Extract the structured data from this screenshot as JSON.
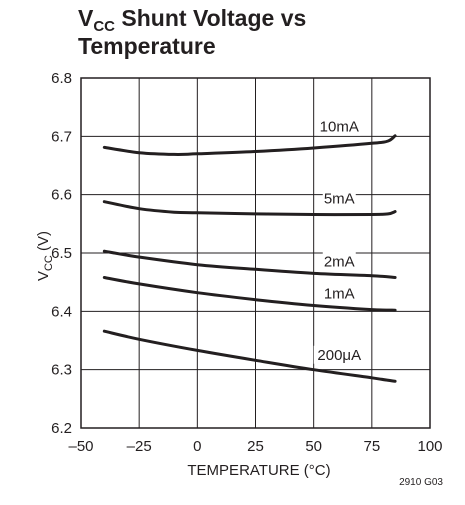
{
  "chart_data": {
    "type": "line",
    "title": {
      "symbol": "V",
      "symbol_sub": "CC",
      "line1_rest": " Shunt Voltage vs",
      "line2": "Temperature"
    },
    "xlabel": "TEMPERATURE (°C)",
    "ylabel": {
      "main": "V",
      "sub": "CC",
      "rest": " (V)"
    },
    "xlim": [
      -50,
      100
    ],
    "ylim": [
      6.2,
      6.8
    ],
    "x_ticks": [
      -50,
      -25,
      0,
      25,
      50,
      75,
      100
    ],
    "x_tick_labels": [
      "–50",
      "–25",
      "0",
      "25",
      "50",
      "75",
      "100"
    ],
    "y_ticks": [
      6.2,
      6.3,
      6.4,
      6.5,
      6.6,
      6.7,
      6.8
    ],
    "y_tick_labels": [
      "6.2",
      "6.3",
      "6.4",
      "6.5",
      "6.6",
      "6.7",
      "6.8"
    ],
    "grid": true,
    "series": [
      {
        "name": "10mA",
        "x": [
          -40,
          -25,
          -10,
          0,
          25,
          50,
          75,
          82,
          85
        ],
        "y": [
          6.681,
          6.672,
          6.669,
          6.67,
          6.674,
          6.68,
          6.688,
          6.692,
          6.701
        ]
      },
      {
        "name": "5mA",
        "x": [
          -40,
          -25,
          -10,
          0,
          25,
          50,
          75,
          82,
          85
        ],
        "y": [
          6.588,
          6.576,
          6.57,
          6.569,
          6.567,
          6.566,
          6.566,
          6.567,
          6.571
        ]
      },
      {
        "name": "2mA",
        "x": [
          -40,
          -25,
          0,
          25,
          50,
          75,
          85
        ],
        "y": [
          6.503,
          6.493,
          6.48,
          6.472,
          6.465,
          6.461,
          6.458
        ]
      },
      {
        "name": "1mA",
        "x": [
          -40,
          -25,
          0,
          25,
          50,
          75,
          85
        ],
        "y": [
          6.458,
          6.447,
          6.432,
          6.42,
          6.41,
          6.403,
          6.402
        ]
      },
      {
        "name": "200μA",
        "x": [
          -40,
          -25,
          0,
          25,
          50,
          75,
          85
        ],
        "y": [
          6.366,
          6.352,
          6.333,
          6.316,
          6.3,
          6.286,
          6.28
        ]
      }
    ],
    "figure_code": "2910 G03"
  }
}
